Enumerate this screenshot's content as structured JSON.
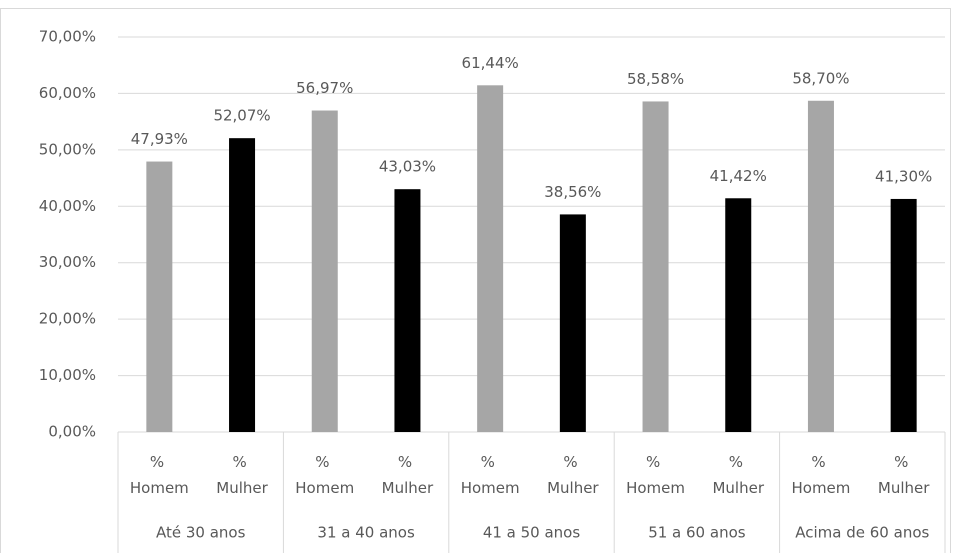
{
  "chart_data": {
    "type": "bar",
    "categories": [
      "Até 30 anos",
      "31 a 40 anos",
      "41 a 50 anos",
      "51 a 60 anos",
      "Acima de 60 anos"
    ],
    "series": [
      {
        "name": "% Homem",
        "color": "#a6a6a6",
        "values": [
          47.93,
          56.97,
          61.44,
          58.58,
          58.7
        ],
        "value_labels": [
          "47,93%",
          "56,97%",
          "61,44%",
          "58,58%",
          "58,70%"
        ]
      },
      {
        "name": "% Mulher",
        "color": "#000000",
        "values": [
          52.07,
          43.03,
          38.56,
          41.42,
          41.3
        ],
        "value_labels": [
          "52,07%",
          "43,03%",
          "38,56%",
          "41,42%",
          "41,30%"
        ]
      }
    ],
    "ylim": [
      0,
      70
    ],
    "yticks": [
      {
        "value": 0,
        "label": "0,00%"
      },
      {
        "value": 10,
        "label": "10,00%"
      },
      {
        "value": 20,
        "label": "20,00%"
      },
      {
        "value": 30,
        "label": "30,00%"
      },
      {
        "value": 40,
        "label": "40,00%"
      },
      {
        "value": 50,
        "label": "50,00%"
      },
      {
        "value": 60,
        "label": "60,00%"
      },
      {
        "value": 70,
        "label": "70,00%"
      }
    ],
    "grid": true
  }
}
